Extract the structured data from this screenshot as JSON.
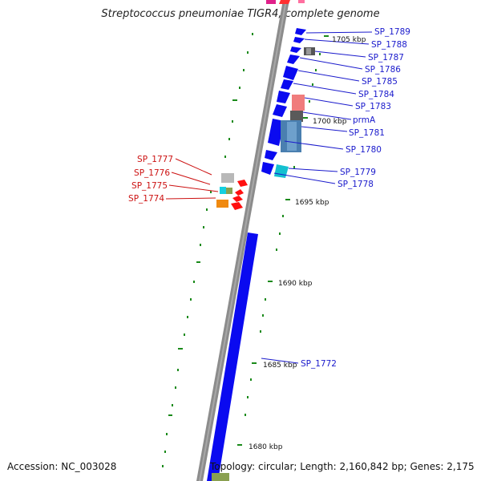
{
  "title": "Streptococcus pneumoniae TIGR4, complete genome",
  "footer": {
    "accession": "Accession: NC_003028",
    "summary": "Topology: circular; Length: 2,160,842 bp; Genes: 2,175"
  },
  "scale_labels": [
    "1705 kbp",
    "1700 kbp",
    "1695 kbp",
    "1690 kbp",
    "1685 kbp",
    "1680 kbp"
  ],
  "genes_forward": [
    "SP_1789",
    "SP_1788",
    "SP_1787",
    "SP_1786",
    "SP_1785",
    "SP_1784",
    "SP_1783",
    "prmA",
    "SP_1781",
    "SP_1780",
    "SP_1779",
    "SP_1778",
    "SP_1772"
  ],
  "genes_reverse": [
    "SP_1777",
    "SP_1776",
    "SP_1775",
    "SP_1774"
  ],
  "colors": {
    "forward_label": "#1a1acc",
    "reverse_label": "#cc1111",
    "cds_blue": "#0a0af0",
    "reverse_red": "#ff1010",
    "backbone": "#888888",
    "tick_green": "#1a8a1a"
  }
}
